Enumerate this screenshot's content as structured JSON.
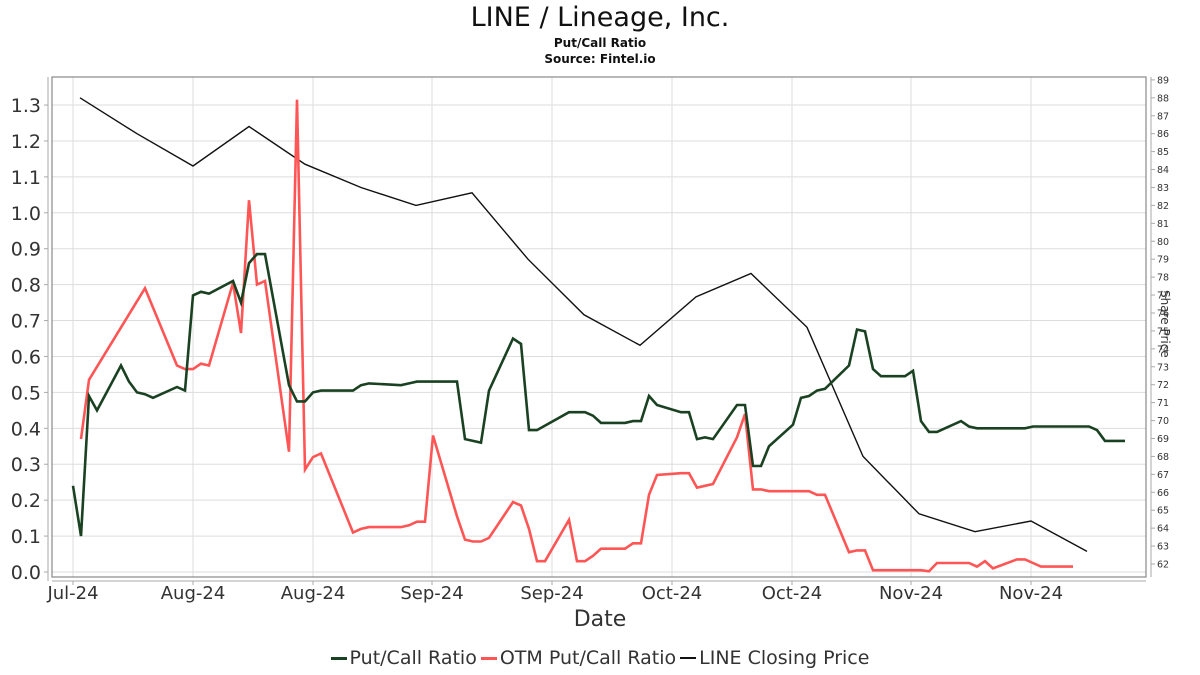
{
  "header": {
    "title": "LINE / Lineage, Inc.",
    "subtitle": "Put/Call Ratio",
    "source": "Source: Fintel.io"
  },
  "axes": {
    "x_label": "Date",
    "left_ticks": [
      "0.0",
      "0.1",
      "0.2",
      "0.3",
      "0.4",
      "0.5",
      "0.6",
      "0.7",
      "0.8",
      "0.9",
      "1.0",
      "1.1",
      "1.2",
      "1.3"
    ],
    "right_label": "Share Price",
    "right_ticks": [
      "62",
      "63",
      "64",
      "65",
      "66",
      "67",
      "68",
      "69",
      "70",
      "71",
      "72",
      "73",
      "74",
      "75",
      "76",
      "77",
      "78",
      "79",
      "80",
      "81",
      "82",
      "83",
      "84",
      "85",
      "86",
      "87",
      "88",
      "89"
    ],
    "x_ticks": [
      "Jul-24",
      "Aug-24",
      "Aug-24",
      "Sep-24",
      "Sep-24",
      "Oct-24",
      "Oct-24",
      "Nov-24",
      "Nov-24"
    ]
  },
  "legend": {
    "items": [
      {
        "label": "Put/Call Ratio",
        "color": "#1a4222"
      },
      {
        "label": "OTM Put/Call Ratio",
        "color": "#ff5555"
      },
      {
        "label": "LINE Closing Price",
        "color": "#111111"
      }
    ]
  },
  "colors": {
    "put_call": "#1a4222",
    "otm_put_call": "#ff5555",
    "price": "#111111",
    "grid": "#dddddd",
    "frame": "#888888"
  },
  "chart_data": {
    "type": "line",
    "title": "LINE / Lineage, Inc.",
    "subtitle": "Put/Call Ratio — Source: Fintel.io",
    "xlabel": "Date",
    "ylabel": "Put/Call Ratio",
    "y2label": "Share Price",
    "ylim": [
      0.0,
      1.36
    ],
    "y2lim": [
      61.6,
      89.2
    ],
    "x_ticks": [
      "Jul-24",
      "Aug-24",
      "Aug-24",
      "Sep-24",
      "Sep-24",
      "Oct-24",
      "Oct-24",
      "Nov-24",
      "Nov-24"
    ],
    "x_tick_positions": [
      73,
      193,
      313,
      432,
      552,
      672,
      792,
      911,
      1031
    ],
    "grid": true,
    "legend_position": "bottom",
    "series": [
      {
        "name": "Put/Call Ratio",
        "axis": "left",
        "x": [
          73,
          81,
          89,
          97,
          121,
          129,
          137,
          145,
          153,
          177,
          185,
          193,
          201,
          209,
          233,
          241,
          249,
          257,
          265,
          289,
          297,
          305,
          313,
          321,
          353,
          361,
          369,
          401,
          409,
          417,
          425,
          457,
          465,
          481,
          489,
          513,
          521,
          529,
          537,
          569,
          577,
          585,
          593,
          601,
          625,
          633,
          641,
          649,
          657,
          681,
          689,
          697,
          705,
          713,
          737,
          745,
          753,
          761,
          769,
          793,
          801,
          809,
          817,
          825,
          849,
          857,
          865,
          873,
          881,
          905,
          913,
          921,
          929,
          937,
          961,
          969,
          977,
          985,
          993,
          1017,
          1025,
          1033,
          1041,
          1049,
          1073,
          1081,
          1089,
          1097,
          1105,
          1125
        ],
        "values": [
          0.24,
          0.1,
          0.49,
          0.45,
          0.575,
          0.53,
          0.5,
          0.495,
          0.485,
          0.515,
          0.505,
          0.77,
          0.78,
          0.775,
          0.81,
          0.75,
          0.86,
          0.885,
          0.885,
          0.52,
          0.475,
          0.475,
          0.5,
          0.505,
          0.505,
          0.52,
          0.525,
          0.52,
          0.525,
          0.53,
          0.53,
          0.53,
          0.37,
          0.36,
          0.505,
          0.65,
          0.635,
          0.395,
          0.395,
          0.445,
          0.445,
          0.445,
          0.435,
          0.415,
          0.415,
          0.42,
          0.42,
          0.49,
          0.465,
          0.445,
          0.445,
          0.37,
          0.375,
          0.37,
          0.465,
          0.465,
          0.295,
          0.295,
          0.35,
          0.41,
          0.485,
          0.49,
          0.505,
          0.51,
          0.575,
          0.675,
          0.67,
          0.565,
          0.545,
          0.545,
          0.56,
          0.42,
          0.39,
          0.39,
          0.42,
          0.405,
          0.4,
          0.4,
          0.4,
          0.4,
          0.4,
          0.405,
          0.405,
          0.405,
          0.405,
          0.405,
          0.405,
          0.395,
          0.365,
          0.365
        ]
      },
      {
        "name": "OTM Put/Call Ratio",
        "axis": "left",
        "x": [
          81,
          89,
          145,
          177,
          185,
          193,
          201,
          209,
          233,
          241,
          249,
          257,
          265,
          289,
          297,
          305,
          313,
          321,
          353,
          361,
          369,
          401,
          409,
          417,
          425,
          433,
          457,
          465,
          473,
          481,
          489,
          513,
          521,
          529,
          537,
          545,
          569,
          577,
          585,
          593,
          601,
          625,
          633,
          641,
          649,
          657,
          681,
          689,
          697,
          705,
          713,
          737,
          745,
          753,
          761,
          769,
          793,
          801,
          809,
          817,
          825,
          849,
          857,
          865,
          873,
          881,
          905,
          913,
          921,
          929,
          937,
          961,
          969,
          977,
          985,
          993,
          1017,
          1025,
          1033,
          1041,
          1049,
          1073
        ],
        "values": [
          0.37,
          0.535,
          0.79,
          0.575,
          0.565,
          0.565,
          0.58,
          0.575,
          0.805,
          0.665,
          1.035,
          0.8,
          0.81,
          0.335,
          1.315,
          0.285,
          0.32,
          0.33,
          0.11,
          0.12,
          0.125,
          0.125,
          0.13,
          0.14,
          0.14,
          0.38,
          0.155,
          0.09,
          0.085,
          0.085,
          0.095,
          0.195,
          0.185,
          0.12,
          0.03,
          0.03,
          0.145,
          0.03,
          0.03,
          0.045,
          0.065,
          0.065,
          0.08,
          0.08,
          0.215,
          0.27,
          0.275,
          0.275,
          0.235,
          0.24,
          0.245,
          0.375,
          0.44,
          0.23,
          0.23,
          0.225,
          0.225,
          0.225,
          0.225,
          0.215,
          0.215,
          0.055,
          0.06,
          0.06,
          0.005,
          0.005,
          0.005,
          0.005,
          0.005,
          0.002,
          0.025,
          0.025,
          0.025,
          0.015,
          0.03,
          0.01,
          0.035,
          0.035,
          0.025,
          0.015,
          0.015,
          0.015
        ]
      },
      {
        "name": "LINE Closing Price",
        "axis": "right",
        "x": [
          80,
          137,
          193,
          249,
          305,
          361,
          416,
          472,
          528,
          584,
          640,
          696,
          751,
          807,
          863,
          919,
          975,
          1031,
          1087
        ],
        "values": [
          88.0,
          86.0,
          84.2,
          86.4,
          84.3,
          83.0,
          82.0,
          82.7,
          79.0,
          75.9,
          74.2,
          76.9,
          78.2,
          75.2,
          68.0,
          64.8,
          63.8,
          64.4,
          62.7
        ]
      }
    ]
  }
}
